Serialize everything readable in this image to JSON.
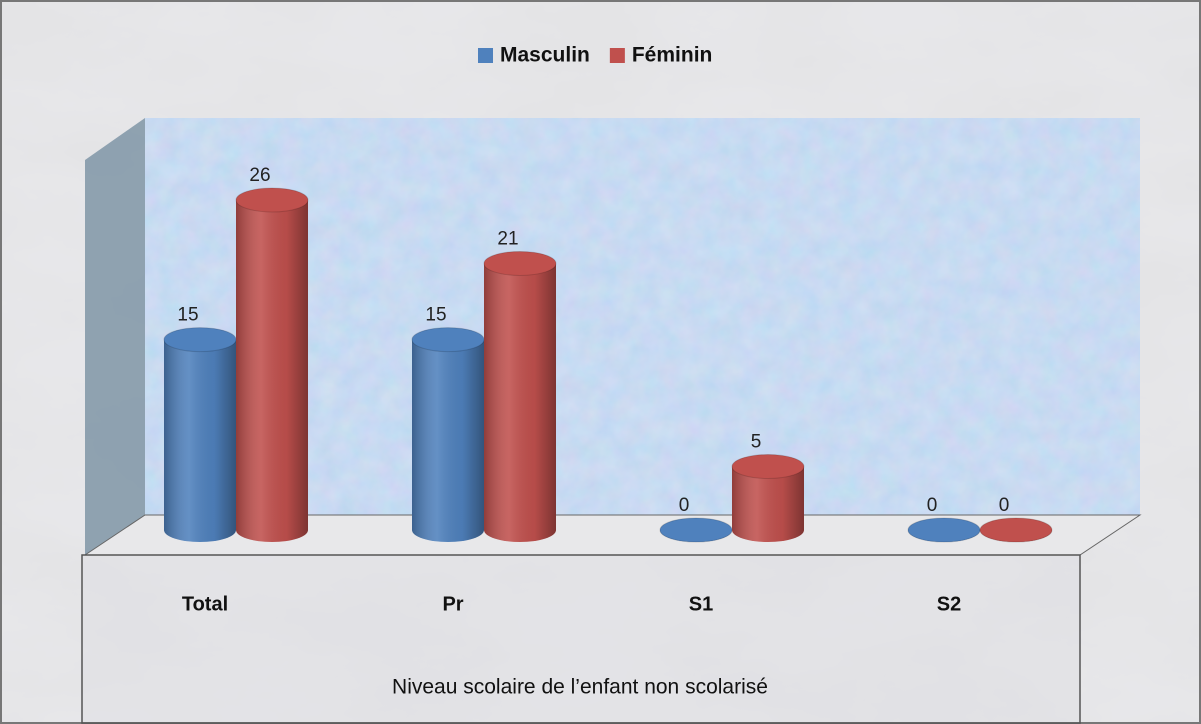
{
  "chart_data": {
    "type": "bar3d",
    "categories": [
      "Total",
      "Pr",
      "S1",
      "S2"
    ],
    "series": [
      {
        "name": "Masculin",
        "color": "#4f81bd",
        "values": [
          15,
          15,
          0,
          0
        ]
      },
      {
        "name": "Féminin",
        "color": "#c0504d",
        "values": [
          26,
          21,
          5,
          0
        ]
      }
    ],
    "x_label": "Niveau scolaire de l’enfant non scolarisé",
    "legend": "top"
  }
}
